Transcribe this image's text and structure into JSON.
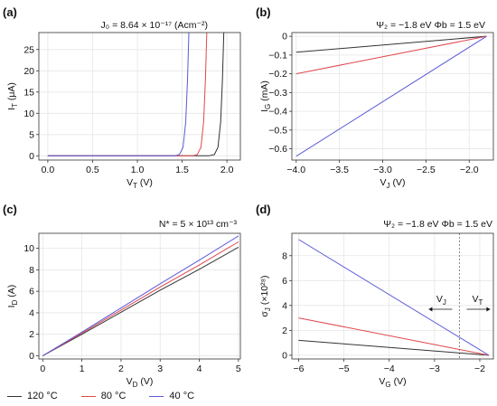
{
  "colors": {
    "t120": "#333333",
    "t80": "#e0474c",
    "t40": "#5a5ad8"
  },
  "legend": [
    {
      "label": "120 °C",
      "color": "#333333"
    },
    {
      "label": "80 °C",
      "color": "#e0474c"
    },
    {
      "label": "40 °C",
      "color": "#5a5ad8"
    }
  ],
  "chart_data": [
    {
      "panel": "(a)",
      "type": "line",
      "title": "J₀ = 8.64 × 10⁻¹⁷ (Acm⁻²)",
      "xlabel": "VT (V)",
      "ylabel": "IT (μA)",
      "xlim": [
        -0.1,
        2.15
      ],
      "ylim": [
        -1,
        29
      ],
      "xticks": [
        "0.0",
        "0.5",
        "1.0",
        "1.5",
        "2.0"
      ],
      "yticks": [
        "0",
        "5",
        "10",
        "15",
        "20",
        "25"
      ],
      "grid": true,
      "series": [
        {
          "name": "120 °C",
          "color": "#333333",
          "x": [
            0.0,
            1.8,
            1.86,
            1.9,
            1.93,
            1.95,
            1.965
          ],
          "y": [
            0,
            0,
            0.3,
            2,
            8,
            18,
            29
          ]
        },
        {
          "name": "80 °C",
          "color": "#e0474c",
          "x": [
            0.0,
            1.62,
            1.67,
            1.71,
            1.74,
            1.76,
            1.775
          ],
          "y": [
            0,
            0,
            0.3,
            2,
            8,
            18,
            29
          ]
        },
        {
          "name": "40 °C",
          "color": "#5a5ad8",
          "x": [
            0.0,
            1.42,
            1.47,
            1.51,
            1.54,
            1.56,
            1.575
          ],
          "y": [
            0,
            0,
            0.3,
            2,
            8,
            18,
            29
          ]
        }
      ]
    },
    {
      "panel": "(b)",
      "type": "line",
      "title": "Ψ₂ = −1.8 eV   Φb = 1.5 eV",
      "xlabel": "VJ (V)",
      "ylabel": "IG (mA)",
      "xlim": [
        -4.05,
        -1.72
      ],
      "ylim": [
        -0.66,
        0.02
      ],
      "xticks": [
        "-4.0",
        "-3.5",
        "-3.0",
        "-2.5",
        "-2.0"
      ],
      "yticks": [
        "0",
        "-0.1",
        "-0.2",
        "-0.3",
        "-0.4",
        "-0.5",
        "-0.6"
      ],
      "grid": true,
      "series": [
        {
          "name": "120 °C",
          "color": "#333333",
          "x": [
            -4.0,
            -1.8
          ],
          "y": [
            -0.085,
            0
          ]
        },
        {
          "name": "80 °C",
          "color": "#e0474c",
          "x": [
            -4.0,
            -1.8
          ],
          "y": [
            -0.2,
            0
          ]
        },
        {
          "name": "40 °C",
          "color": "#5a5ad8",
          "x": [
            -4.0,
            -1.8
          ],
          "y": [
            -0.64,
            0
          ]
        }
      ]
    },
    {
      "panel": "(c)",
      "type": "line",
      "title": "N* = 5 × 10¹³ cm⁻³",
      "xlabel": "VD (V)",
      "ylabel": "ID (A)",
      "xlim": [
        -0.1,
        5.05
      ],
      "ylim": [
        -0.3,
        11.4
      ],
      "xticks": [
        "0",
        "1",
        "2",
        "3",
        "4",
        "5"
      ],
      "yticks": [
        "0",
        "2",
        "4",
        "6",
        "8",
        "10"
      ],
      "grid": true,
      "series": [
        {
          "name": "120 °C",
          "color": "#333333",
          "x": [
            0,
            1,
            2,
            3,
            4,
            5
          ],
          "y": [
            0,
            2.0,
            4.05,
            6.1,
            8.05,
            10.1
          ]
        },
        {
          "name": "80 °C",
          "color": "#e0474c",
          "x": [
            0,
            1,
            2,
            3,
            4,
            5
          ],
          "y": [
            0,
            2.1,
            4.25,
            6.4,
            8.45,
            10.6
          ]
        },
        {
          "name": "40 °C",
          "color": "#5a5ad8",
          "x": [
            0,
            1,
            2,
            3,
            4,
            5
          ],
          "y": [
            0,
            2.2,
            4.45,
            6.7,
            8.9,
            11.15
          ]
        }
      ]
    },
    {
      "panel": "(d)",
      "type": "line",
      "title": "Ψ₂ = −1.8 eV   Φb = 1.5 eV",
      "xlabel": "VG (V)",
      "ylabel": "σJ (×10²⁸)",
      "xlim": [
        -6.15,
        -1.7
      ],
      "ylim": [
        -0.3,
        9.8
      ],
      "xticks": [
        "-6",
        "-5",
        "-4",
        "-3",
        "-2"
      ],
      "yticks": [
        "0",
        "2",
        "4",
        "6",
        "8"
      ],
      "grid": true,
      "annotations": {
        "vline_x": -2.45,
        "left_label": "VJ",
        "right_label": "VT"
      },
      "series": [
        {
          "name": "120 °C",
          "color": "#333333",
          "x": [
            -6,
            -1.8
          ],
          "y": [
            1.2,
            0
          ]
        },
        {
          "name": "80 °C",
          "color": "#e0474c",
          "x": [
            -6,
            -1.8
          ],
          "y": [
            3.0,
            0
          ]
        },
        {
          "name": "40 °C",
          "color": "#5a5ad8",
          "x": [
            -6,
            -1.8
          ],
          "y": [
            9.3,
            0
          ]
        }
      ]
    }
  ]
}
